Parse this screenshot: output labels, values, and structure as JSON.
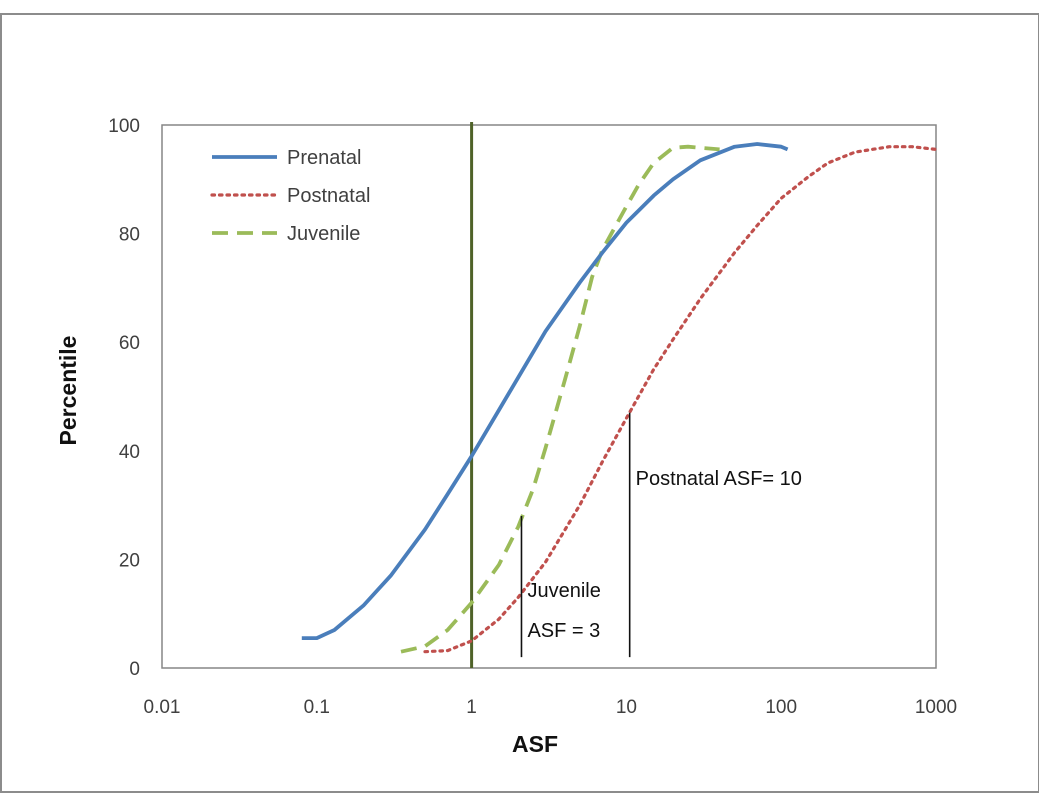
{
  "chart_data": {
    "type": "line",
    "xlabel": "ASF",
    "ylabel": "Percentile",
    "xscale": "log",
    "xlim": [
      0.01,
      1000
    ],
    "ylim": [
      0,
      100
    ],
    "x_ticks": [
      0.01,
      0.1,
      1,
      10,
      100,
      1000
    ],
    "x_tick_labels": [
      "0.01",
      "0.1",
      "1",
      "10",
      "100",
      "1000"
    ],
    "y_ticks": [
      0,
      20,
      40,
      60,
      80,
      100
    ],
    "y_tick_labels": [
      "0",
      "20",
      "40",
      "60",
      "80",
      "100"
    ],
    "grid": false,
    "legend_position": "top-left",
    "series": [
      {
        "name": "Prenatal",
        "style": "solid",
        "color": "#4A7EBB",
        "x": [
          0.08,
          0.1,
          0.13,
          0.2,
          0.3,
          0.5,
          0.7,
          1,
          1.5,
          2,
          3,
          5,
          7,
          10,
          15,
          20,
          30,
          50,
          70,
          100,
          110
        ],
        "y": [
          5.5,
          5.5,
          7,
          11.5,
          17,
          25.5,
          32,
          39,
          47.5,
          53.5,
          62,
          71,
          76.5,
          82,
          87,
          90,
          93.5,
          96,
          96.5,
          96,
          95.5
        ]
      },
      {
        "name": "Postnatal",
        "style": "dotted",
        "color": "#C0504D",
        "x": [
          0.5,
          0.7,
          1,
          1.5,
          2,
          3,
          5,
          7,
          10,
          15,
          20,
          30,
          50,
          70,
          100,
          150,
          200,
          300,
          500,
          700,
          1000
        ],
        "y": [
          3,
          3.2,
          5,
          9,
          13,
          19.5,
          30,
          38,
          46,
          55,
          60.5,
          68,
          76.5,
          81.5,
          86.5,
          90.5,
          93,
          95,
          96,
          96,
          95.5
        ]
      },
      {
        "name": "Juvenile",
        "style": "dashed",
        "color": "#9BBB59",
        "x": [
          0.35,
          0.5,
          0.7,
          1,
          1.5,
          2,
          2.5,
          3,
          4,
          5,
          6,
          7,
          8,
          10,
          12,
          15,
          20,
          25,
          30,
          40
        ],
        "y": [
          3,
          4,
          7,
          12,
          19,
          26,
          33,
          40.5,
          53,
          63,
          72,
          77,
          80,
          85,
          89,
          93,
          95.8,
          96,
          95.8,
          95.5
        ]
      }
    ],
    "reference_line": {
      "x": 1,
      "color": "#4F6228"
    },
    "annotations": [
      {
        "x": 2.1,
        "y_from": 2,
        "y_to": 28,
        "lines": [
          "Juvenile",
          "ASF = 3"
        ]
      },
      {
        "x": 10.5,
        "y_from": 2,
        "y_to": 47,
        "lines": [
          "Postnatal ASF= 10"
        ]
      }
    ]
  }
}
